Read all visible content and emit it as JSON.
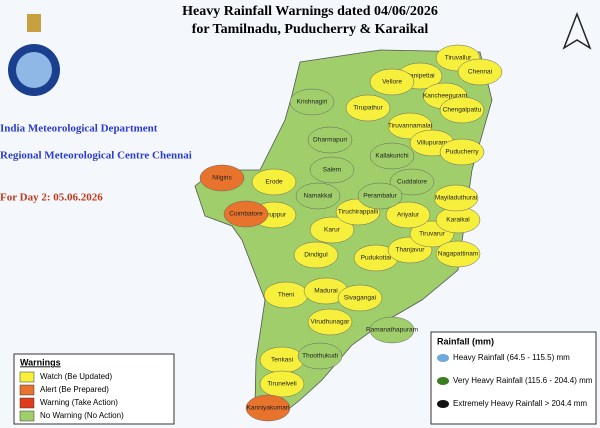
{
  "header": {
    "title": "Heavy Rainfall Warnings dated 04/06/2026",
    "subtitle": "for Tamilnadu, Puducherry & Karaikal"
  },
  "agency": {
    "department": "India Meteorological Department",
    "centre": "Regional Meteorological Centre Chennai",
    "day": "For Day 2: 05.06.2026"
  },
  "warnings": {
    "title": "Warnings",
    "items": [
      {
        "label": "Watch (Be Updated)",
        "color": "#f6f03c",
        "districts": [
          "Tiruvallur",
          "Chennai",
          "Ranipettai",
          "Vellore",
          "Kancheepuram",
          "Chengalpattu",
          "Tirupathur",
          "Tiruvannamalai",
          "Villupuram",
          "Puducherry",
          "Erode",
          "Tiruppur",
          "Dindigul",
          "Karur",
          "Theni",
          "Madurai",
          "Sivagangai",
          "Pudukottai",
          "Thanjavur",
          "Tiruvarur",
          "Karaikal",
          "Nagapattinam",
          "Mayiladuthurai",
          "Ariyalur",
          "Virudhunagar",
          "Tenkasi",
          "Tirunelveli",
          "Tiruchirappalli"
        ]
      },
      {
        "label": "Alert (Be Prepared)",
        "color": "#e8732c",
        "districts": [
          "Nilgiris",
          "Coimbatore",
          "Kanniyakumari"
        ]
      },
      {
        "label": "Warning (Take Action)",
        "color": "#e03c1c",
        "districts": []
      },
      {
        "label": "No Warning (No Action)",
        "color": "#9fce6a",
        "districts": [
          "Krishnagiri",
          "Dharmapuri",
          "Salem",
          "Namakkal",
          "Kallakurichi",
          "Cuddalore",
          "Perambalur",
          "Ramanathapuram",
          "Thoothukudi"
        ]
      }
    ]
  },
  "rainfall": {
    "title": "Rainfall (mm)",
    "items": [
      {
        "label": "Heavy Rainfall (64.5 - 115.5) mm",
        "color": "#6fa8dc"
      },
      {
        "label": "Very Heavy Rainfall (115.6 - 204.4) mm",
        "color": "#3c7d22"
      },
      {
        "label": "Extremely Heavy Rainfall > 204.4 mm",
        "color": "#111111"
      }
    ]
  }
}
